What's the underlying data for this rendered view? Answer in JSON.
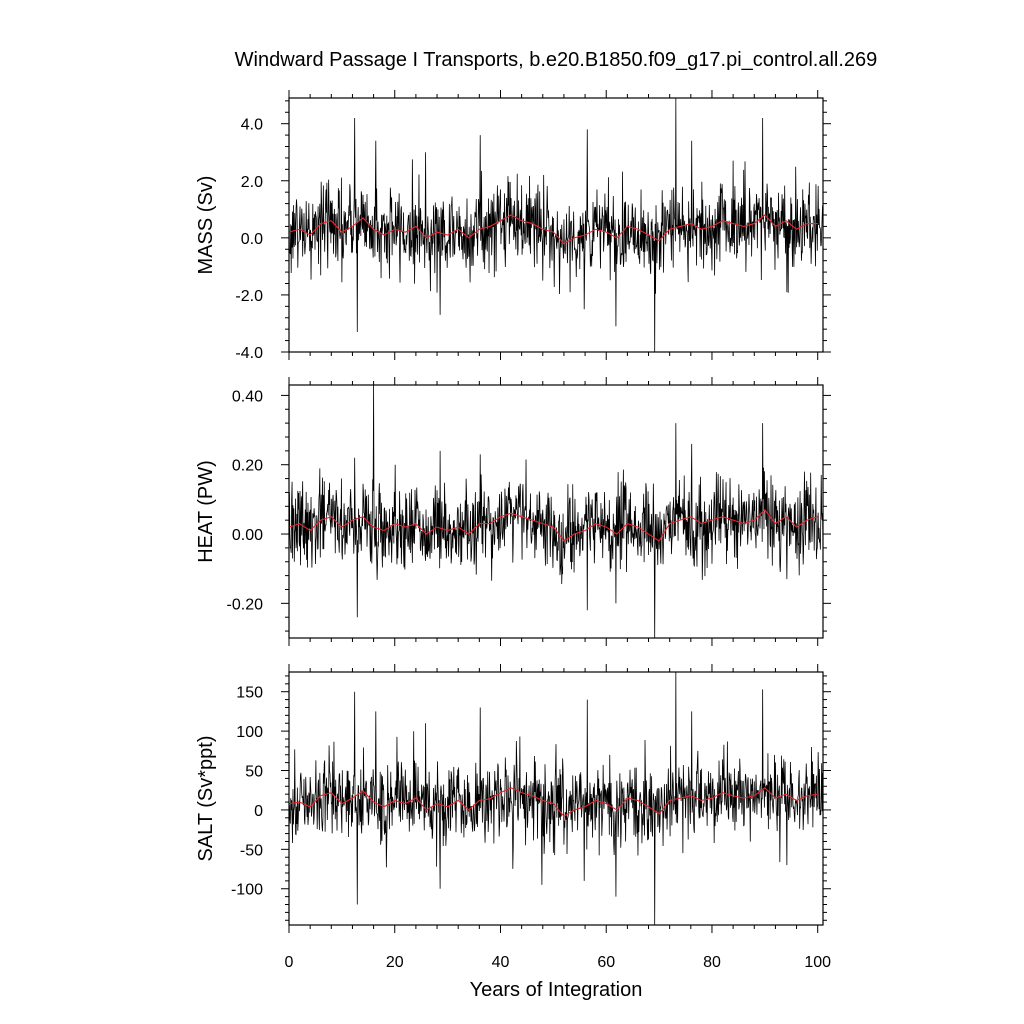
{
  "title": "Windward Passage I Transports, b.e20.B1850.f09_g17.pi_control.all.269",
  "xlabel": "Years of Integration",
  "chart_data": [
    {
      "type": "line",
      "ylabel": "MASS (Sv)",
      "xlim": [
        0,
        101
      ],
      "ylim": [
        -4.0,
        4.9
      ],
      "xticks": [
        0,
        20,
        40,
        60,
        80,
        100
      ],
      "xtick_labels": [
        "0",
        "20",
        "40",
        "60",
        "80",
        "100"
      ],
      "yticks": [
        -4.0,
        -2.0,
        0.0,
        2.0,
        4.0
      ],
      "ytick_labels": [
        "-4.0",
        "-2.0",
        "0.0",
        "2.0",
        "4.0"
      ],
      "series": [
        {
          "role": "monthly",
          "color": "#000000",
          "spread": 0.75,
          "spikes": [
            [
              12.4,
              4.2
            ],
            [
              16.4,
              3.4
            ],
            [
              25.8,
              3.0
            ],
            [
              28.6,
              3.3
            ],
            [
              36.2,
              3.6
            ],
            [
              56.4,
              3.8
            ],
            [
              73.2,
              4.9
            ],
            [
              76.2,
              3.4
            ],
            [
              89.6,
              4.2
            ],
            [
              12.9,
              -3.3
            ],
            [
              28.6,
              -2.7
            ],
            [
              55.8,
              -2.5
            ],
            [
              61.8,
              -3.1
            ],
            [
              69.2,
              -4.0
            ],
            [
              94.2,
              -1.9
            ]
          ]
        },
        {
          "role": "annual-mean",
          "color": "#e8252c",
          "x": [
            0,
            2,
            4,
            6,
            8,
            10,
            12,
            14,
            16,
            18,
            20,
            22,
            24,
            26,
            28,
            30,
            32,
            34,
            36,
            38,
            40,
            42,
            44,
            46,
            48,
            50,
            52,
            54,
            56,
            58,
            60,
            62,
            64,
            66,
            68,
            70,
            72,
            74,
            76,
            78,
            80,
            82,
            84,
            86,
            88,
            90,
            92,
            94,
            96,
            98,
            100
          ],
          "y": [
            0.2,
            0.3,
            0.1,
            0.5,
            0.6,
            0.2,
            0.4,
            0.7,
            0.3,
            0.1,
            0.3,
            0.2,
            0.4,
            0.0,
            0.2,
            0.1,
            0.3,
            0.0,
            0.3,
            0.4,
            0.6,
            0.8,
            0.6,
            0.5,
            0.3,
            0.2,
            -0.2,
            0.0,
            0.1,
            0.3,
            0.2,
            0.0,
            0.4,
            0.3,
            0.1,
            -0.1,
            0.3,
            0.4,
            0.5,
            0.3,
            0.4,
            0.6,
            0.5,
            0.4,
            0.5,
            0.8,
            0.4,
            0.6,
            0.3,
            0.5,
            0.5
          ]
        }
      ]
    },
    {
      "type": "line",
      "ylabel": "HEAT (PW)",
      "xlim": [
        0,
        101
      ],
      "ylim": [
        -0.3,
        0.43
      ],
      "xticks": [
        0,
        20,
        40,
        60,
        80,
        100
      ],
      "xtick_labels": [
        "0",
        "20",
        "40",
        "60",
        "80",
        "100"
      ],
      "yticks": [
        -0.2,
        0.0,
        0.2,
        0.4
      ],
      "ytick_labels": [
        "-0.20",
        "0.00",
        "0.20",
        "0.40"
      ],
      "series": [
        {
          "role": "monthly",
          "color": "#000000",
          "spread": 0.06,
          "spikes": [
            [
              16.0,
              0.43
            ],
            [
              12.4,
              0.22
            ],
            [
              28.6,
              0.24
            ],
            [
              36.2,
              0.23
            ],
            [
              73.2,
              0.32
            ],
            [
              76.2,
              0.26
            ],
            [
              89.6,
              0.32
            ],
            [
              12.9,
              -0.24
            ],
            [
              56.4,
              -0.22
            ],
            [
              61.8,
              -0.2
            ],
            [
              69.2,
              -0.3
            ],
            [
              94.2,
              -0.13
            ]
          ]
        },
        {
          "role": "annual-mean",
          "color": "#e8252c",
          "x": [
            0,
            2,
            4,
            6,
            8,
            10,
            12,
            14,
            16,
            18,
            20,
            22,
            24,
            26,
            28,
            30,
            32,
            34,
            36,
            38,
            40,
            42,
            44,
            46,
            48,
            50,
            52,
            54,
            56,
            58,
            60,
            62,
            64,
            66,
            68,
            70,
            72,
            74,
            76,
            78,
            80,
            82,
            84,
            86,
            88,
            90,
            92,
            94,
            96,
            98,
            100
          ],
          "y": [
            0.02,
            0.03,
            0.01,
            0.04,
            0.05,
            0.02,
            0.04,
            0.05,
            0.02,
            0.01,
            0.03,
            0.02,
            0.03,
            0.0,
            0.02,
            0.01,
            0.02,
            0.0,
            0.03,
            0.03,
            0.05,
            0.06,
            0.05,
            0.04,
            0.03,
            0.02,
            -0.02,
            0.0,
            0.01,
            0.03,
            0.02,
            0.0,
            0.03,
            0.02,
            0.0,
            -0.02,
            0.03,
            0.04,
            0.05,
            0.03,
            0.04,
            0.05,
            0.04,
            0.03,
            0.04,
            0.07,
            0.03,
            0.05,
            0.02,
            0.04,
            0.05
          ]
        }
      ]
    },
    {
      "type": "line",
      "ylabel": "SALT (Sv*ppt)",
      "xlim": [
        0,
        101
      ],
      "ylim": [
        -146,
        175
      ],
      "xticks": [
        0,
        20,
        40,
        60,
        80,
        100
      ],
      "xtick_labels": [
        "0",
        "20",
        "40",
        "60",
        "80",
        "100"
      ],
      "yticks": [
        -100,
        -50,
        0,
        50,
        100,
        150
      ],
      "ytick_labels": [
        "-100",
        "-50",
        "0",
        "50",
        "100",
        "150"
      ],
      "series": [
        {
          "role": "monthly",
          "color": "#000000",
          "spread": 26,
          "spikes": [
            [
              12.4,
              150
            ],
            [
              16.4,
              125
            ],
            [
              25.8,
              110
            ],
            [
              28.6,
              118
            ],
            [
              36.2,
              130
            ],
            [
              56.4,
              140
            ],
            [
              73.2,
              175
            ],
            [
              76.2,
              125
            ],
            [
              89.6,
              153
            ],
            [
              12.9,
              -120
            ],
            [
              28.6,
              -100
            ],
            [
              55.8,
              -90
            ],
            [
              61.8,
              -110
            ],
            [
              69.2,
              -146
            ],
            [
              94.2,
              -70
            ]
          ]
        },
        {
          "role": "annual-mean",
          "color": "#e8252c",
          "x": [
            0,
            2,
            4,
            6,
            8,
            10,
            12,
            14,
            16,
            18,
            20,
            22,
            24,
            26,
            28,
            30,
            32,
            34,
            36,
            38,
            40,
            42,
            44,
            46,
            48,
            50,
            52,
            54,
            56,
            58,
            60,
            62,
            64,
            66,
            68,
            70,
            72,
            74,
            76,
            78,
            80,
            82,
            84,
            86,
            88,
            90,
            92,
            94,
            96,
            98,
            100
          ],
          "y": [
            8,
            10,
            4,
            18,
            22,
            8,
            15,
            24,
            10,
            4,
            12,
            8,
            15,
            0,
            8,
            4,
            12,
            0,
            12,
            14,
            22,
            28,
            22,
            18,
            12,
            8,
            -8,
            0,
            4,
            12,
            8,
            0,
            15,
            12,
            4,
            -5,
            12,
            15,
            18,
            12,
            15,
            22,
            18,
            15,
            18,
            28,
            15,
            20,
            12,
            18,
            20
          ]
        }
      ]
    }
  ]
}
